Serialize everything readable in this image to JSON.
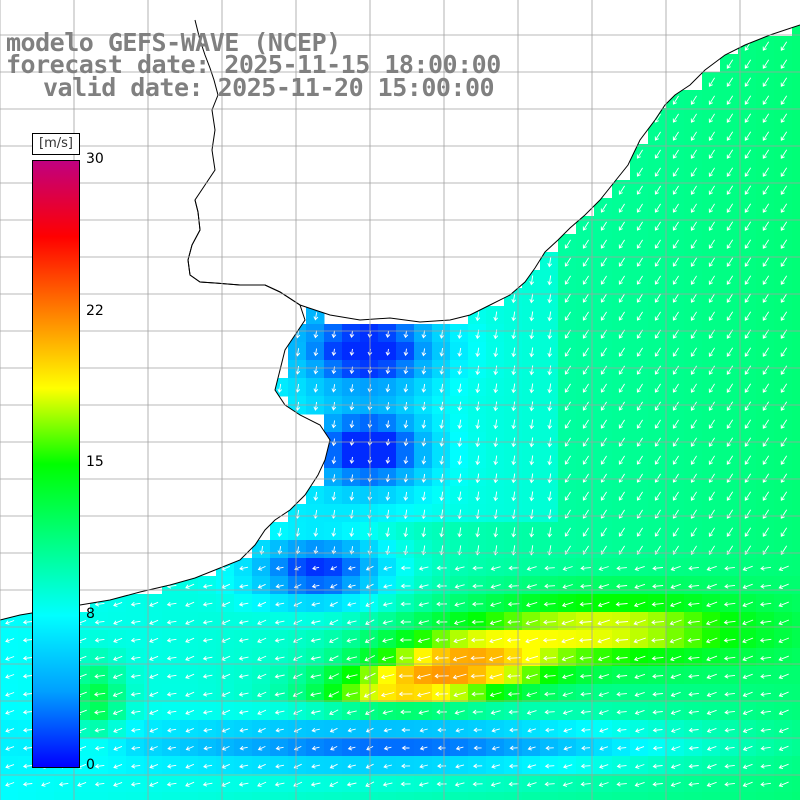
{
  "title": {
    "line1": "modelo GEFS-WAVE (NCEP)",
    "line2": "forecast date: 2025-11-15 18:00:00",
    "line3": "valid date: 2025-11-20 15:00:00"
  },
  "colorbar": {
    "unit": "[m/s]",
    "min": 0,
    "max": 30,
    "ticks": [
      "30",
      "22",
      "15",
      "8",
      "0"
    ],
    "tick_values": [
      30,
      22.5,
      15,
      7.5,
      0
    ],
    "stops": [
      "#0000ff",
      "#00a0ff",
      "#00ffff",
      "#00ff80",
      "#00ff00",
      "#ffff00",
      "#ff8000",
      "#ff0000",
      "#c00080"
    ]
  },
  "map": {
    "variable": "wind speed at 10m",
    "land_color": "#ffffff",
    "grid_color": "#a0a0a0",
    "coast_color": "#000000"
  }
}
